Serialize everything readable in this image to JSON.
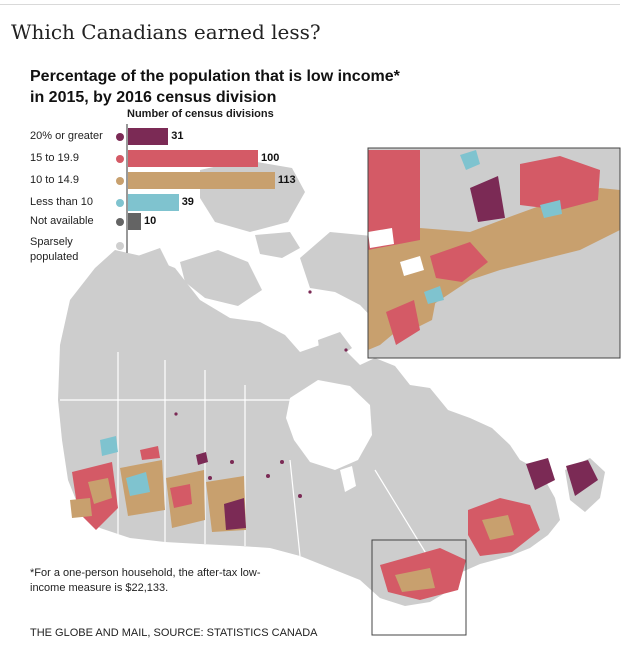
{
  "headline": "Which Canadians earned less?",
  "map_title": "Percentage of the population that is low income* in 2015, by 2016 census division",
  "legend": {
    "header": "Number of census divisions",
    "categories": [
      {
        "label": "20% or greater",
        "count": "31",
        "value": 31,
        "color": "#7b2a55"
      },
      {
        "label": "15 to 19.9",
        "count": "100",
        "value": 100,
        "color": "#d45a66"
      },
      {
        "label": "10 to 14.9",
        "count": "113",
        "value": 113,
        "color": "#c8a06e"
      },
      {
        "label": "Less than 10",
        "count": "39",
        "value": 39,
        "color": "#7fc3cf"
      },
      {
        "label": "Not available",
        "count": "10",
        "value": 10,
        "color": "#646464"
      },
      {
        "label": "Sparsely populated",
        "count": "",
        "value": null,
        "color": "#cfcfcf"
      }
    ]
  },
  "colors": {
    "land": "#cdcdcd",
    "water": "#ffffff",
    "boundary": "#ffffff",
    "inset_frame": "#444444"
  },
  "footnote": "*For a one-person household, the after-tax low-income measure is $22,133.",
  "source": "THE GLOBE AND MAIL, SOURCE: STATISTICS CANADA"
}
